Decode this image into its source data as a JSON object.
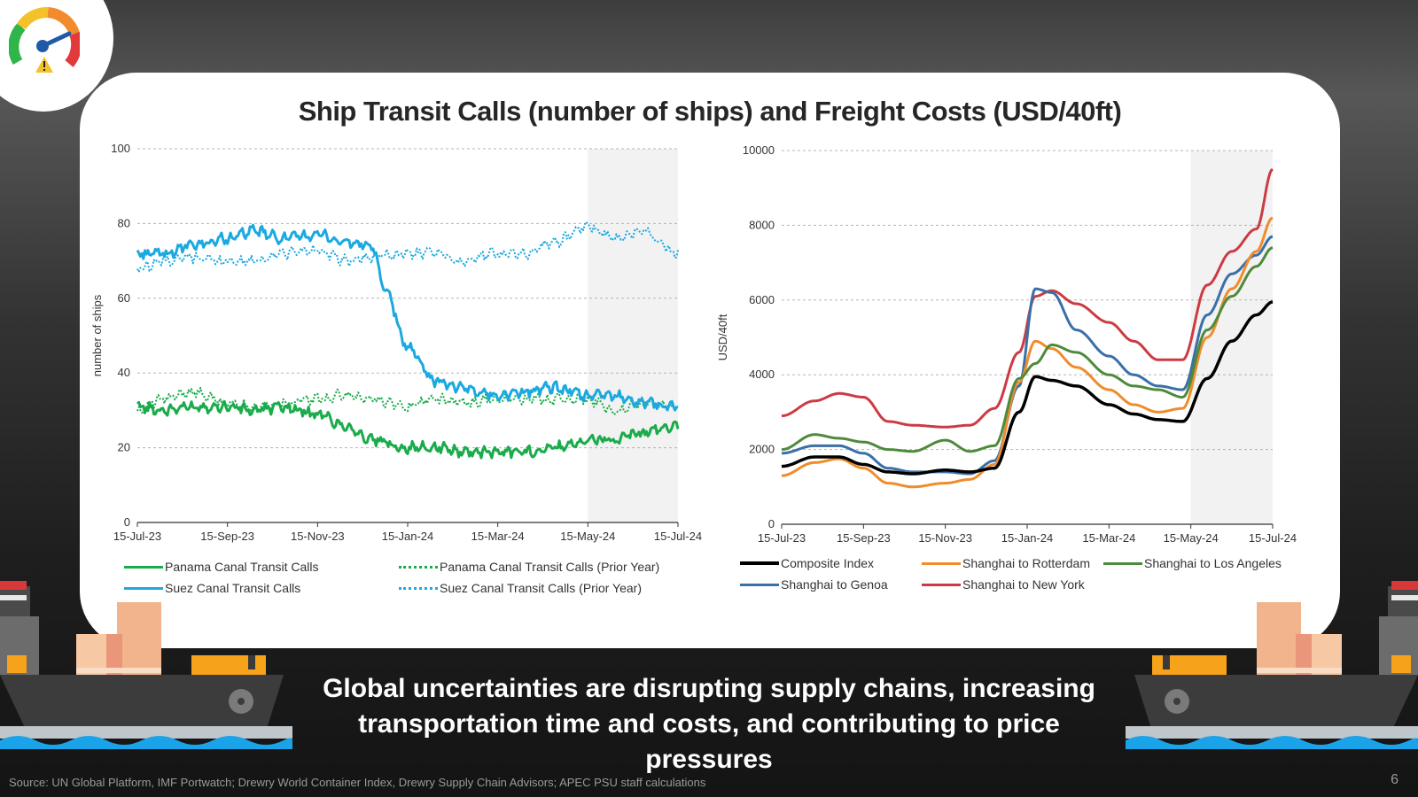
{
  "title": "Ship Transit Calls (number of ships) and Freight Costs (USD/40ft)",
  "headline_line1": "Global uncertainties are disrupting supply chains, increasing",
  "headline_line2": "transportation time and costs, and contributing to price pressures",
  "source": "Source: UN Global Platform, IMF Portwatch; Drewry World Container Index, Drewry Supply Chain Advisors; APEC PSU staff calculations",
  "page_number": "6",
  "colors": {
    "panama": "#1aab4b",
    "suez": "#1ba9e1",
    "composite": "#000000",
    "rotterdam": "#f08c2a",
    "los_angeles": "#4e8a3b",
    "genoa": "#3a6fa8",
    "new_york": "#cc3b43",
    "shade": "#f2f2f2"
  },
  "chart_data": [
    {
      "type": "line",
      "title": "",
      "ylabel": "number of ships",
      "xlabel": "",
      "ylim": [
        0,
        100
      ],
      "yticks": [
        "0",
        "20",
        "40",
        "60",
        "80",
        "100"
      ],
      "xticks": [
        "15-Jul-23",
        "15-Sep-23",
        "15-Nov-23",
        "15-Jan-24",
        "15-Mar-24",
        "15-May-24",
        "15-Jul-24"
      ],
      "shaded_from_tick_index": 5,
      "legend": [
        {
          "name": "Panama Canal Transit Calls",
          "color_key": "panama",
          "style": "solid"
        },
        {
          "name": "Panama Canal Transit Calls (Prior Year)",
          "color_key": "panama",
          "style": "dotted"
        },
        {
          "name": "Suez Canal Transit Calls",
          "color_key": "suez",
          "style": "solid"
        },
        {
          "name": "Suez Canal Transit Calls (Prior Year)",
          "color_key": "suez",
          "style": "dotted"
        }
      ],
      "series": [
        {
          "name": "Panama Canal Transit Calls",
          "color_key": "panama",
          "style": "solid",
          "x": [
            0,
            0.3,
            0.6,
            1,
            1.3,
            1.6,
            2,
            2.3,
            2.6,
            3,
            3.3,
            3.6,
            4,
            4.3,
            4.6,
            5,
            5.3,
            5.6,
            6
          ],
          "values": [
            31,
            30,
            31,
            31,
            30,
            31,
            29,
            26,
            22,
            20,
            20,
            19,
            19,
            19,
            20,
            22,
            22,
            24,
            26
          ]
        },
        {
          "name": "Panama Canal Transit Calls (Prior Year)",
          "color_key": "panama",
          "style": "dotted",
          "x": [
            0,
            0.3,
            0.6,
            1,
            1.3,
            1.6,
            2,
            2.3,
            2.6,
            3,
            3.3,
            3.6,
            4,
            4.3,
            4.6,
            5,
            5.3,
            5.6,
            6
          ],
          "values": [
            30,
            33,
            35,
            32,
            31,
            32,
            33,
            34,
            33,
            31,
            33,
            32,
            33,
            33,
            33,
            33,
            30,
            32,
            31
          ]
        },
        {
          "name": "Suez Canal Transit Calls",
          "color_key": "suez",
          "style": "solid",
          "x": [
            0,
            0.3,
            0.6,
            1,
            1.3,
            1.6,
            2,
            2.3,
            2.6,
            2.75,
            3,
            3.3,
            3.6,
            4,
            4.3,
            4.6,
            5,
            5.3,
            5.6,
            6
          ],
          "values": [
            72,
            72,
            74,
            76,
            78,
            76,
            77,
            75,
            74,
            62,
            47,
            38,
            36,
            34,
            35,
            36,
            34,
            34,
            32,
            31
          ]
        },
        {
          "name": "Suez Canal Transit Calls (Prior Year)",
          "color_key": "suez",
          "style": "dotted",
          "x": [
            0,
            0.3,
            0.6,
            1,
            1.3,
            1.6,
            2,
            2.3,
            2.6,
            3,
            3.3,
            3.6,
            4,
            4.3,
            4.6,
            5,
            5.3,
            5.6,
            6
          ],
          "values": [
            68,
            70,
            71,
            70,
            70,
            72,
            73,
            70,
            71,
            72,
            72,
            70,
            72,
            72,
            75,
            79,
            76,
            78,
            72
          ]
        }
      ]
    },
    {
      "type": "line",
      "title": "",
      "ylabel": "USD/40ft",
      "xlabel": "",
      "ylim": [
        0,
        10000
      ],
      "yticks": [
        "0",
        "2000",
        "4000",
        "6000",
        "8000",
        "10000"
      ],
      "xticks": [
        "15-Jul-23",
        "15-Sep-23",
        "15-Nov-23",
        "15-Jan-24",
        "15-Mar-24",
        "15-May-24",
        "15-Jul-24"
      ],
      "shaded_from_tick_index": 5,
      "legend": [
        {
          "name": "Composite Index",
          "color_key": "composite",
          "style": "solid"
        },
        {
          "name": "Shanghai to Rotterdam",
          "color_key": "rotterdam",
          "style": "solid"
        },
        {
          "name": "Shanghai to Los Angeles",
          "color_key": "los_angeles",
          "style": "solid"
        },
        {
          "name": "Shanghai to Genoa",
          "color_key": "genoa",
          "style": "solid"
        },
        {
          "name": "Shanghai to New York",
          "color_key": "new_york",
          "style": "solid"
        }
      ],
      "series": [
        {
          "name": "Shanghai to New York",
          "color_key": "new_york",
          "x": [
            0,
            0.4,
            0.7,
            1,
            1.3,
            1.6,
            2,
            2.3,
            2.6,
            2.9,
            3.1,
            3.3,
            3.6,
            4,
            4.3,
            4.6,
            4.9,
            5.2,
            5.5,
            5.8,
            6
          ],
          "values": [
            2900,
            3300,
            3500,
            3400,
            2750,
            2650,
            2600,
            2650,
            3100,
            4600,
            6100,
            6250,
            5900,
            5400,
            4900,
            4400,
            4400,
            6400,
            7300,
            7900,
            9500
          ]
        },
        {
          "name": "Shanghai to Genoa",
          "color_key": "genoa",
          "x": [
            0,
            0.4,
            0.7,
            1,
            1.3,
            1.6,
            2,
            2.3,
            2.6,
            2.9,
            3.1,
            3.3,
            3.6,
            4,
            4.3,
            4.6,
            4.9,
            5.2,
            5.5,
            5.8,
            6
          ],
          "values": [
            1900,
            2100,
            2100,
            1900,
            1500,
            1400,
            1400,
            1350,
            1700,
            3700,
            6300,
            6200,
            5200,
            4500,
            4000,
            3700,
            3600,
            5600,
            6700,
            7200,
            7700
          ]
        },
        {
          "name": "Shanghai to Rotterdam",
          "color_key": "rotterdam",
          "x": [
            0,
            0.4,
            0.7,
            1,
            1.3,
            1.6,
            2,
            2.3,
            2.6,
            2.9,
            3.1,
            3.3,
            3.6,
            4,
            4.3,
            4.6,
            4.9,
            5.2,
            5.5,
            5.8,
            6
          ],
          "values": [
            1300,
            1650,
            1750,
            1500,
            1100,
            1000,
            1100,
            1200,
            1600,
            3800,
            4900,
            4700,
            4200,
            3600,
            3200,
            3000,
            3100,
            5000,
            6300,
            7300,
            8200
          ]
        },
        {
          "name": "Shanghai to Los Angeles",
          "color_key": "los_angeles",
          "x": [
            0,
            0.4,
            0.7,
            1,
            1.3,
            1.6,
            2,
            2.3,
            2.6,
            2.9,
            3.1,
            3.3,
            3.6,
            4,
            4.3,
            4.6,
            4.9,
            5.2,
            5.5,
            5.8,
            6
          ],
          "values": [
            2000,
            2400,
            2300,
            2200,
            2000,
            1950,
            2250,
            1950,
            2100,
            3900,
            4300,
            4800,
            4600,
            4000,
            3700,
            3600,
            3400,
            5200,
            6100,
            6900,
            7400
          ]
        },
        {
          "name": "Composite Index",
          "color_key": "composite",
          "x": [
            0,
            0.4,
            0.7,
            1,
            1.3,
            1.6,
            2,
            2.3,
            2.6,
            2.9,
            3.1,
            3.3,
            3.6,
            4,
            4.3,
            4.6,
            4.9,
            5.2,
            5.5,
            5.8,
            6
          ],
          "values": [
            1550,
            1800,
            1800,
            1600,
            1400,
            1350,
            1450,
            1400,
            1500,
            3000,
            3950,
            3850,
            3700,
            3200,
            2950,
            2800,
            2750,
            3900,
            4900,
            5600,
            5950
          ]
        }
      ]
    }
  ]
}
